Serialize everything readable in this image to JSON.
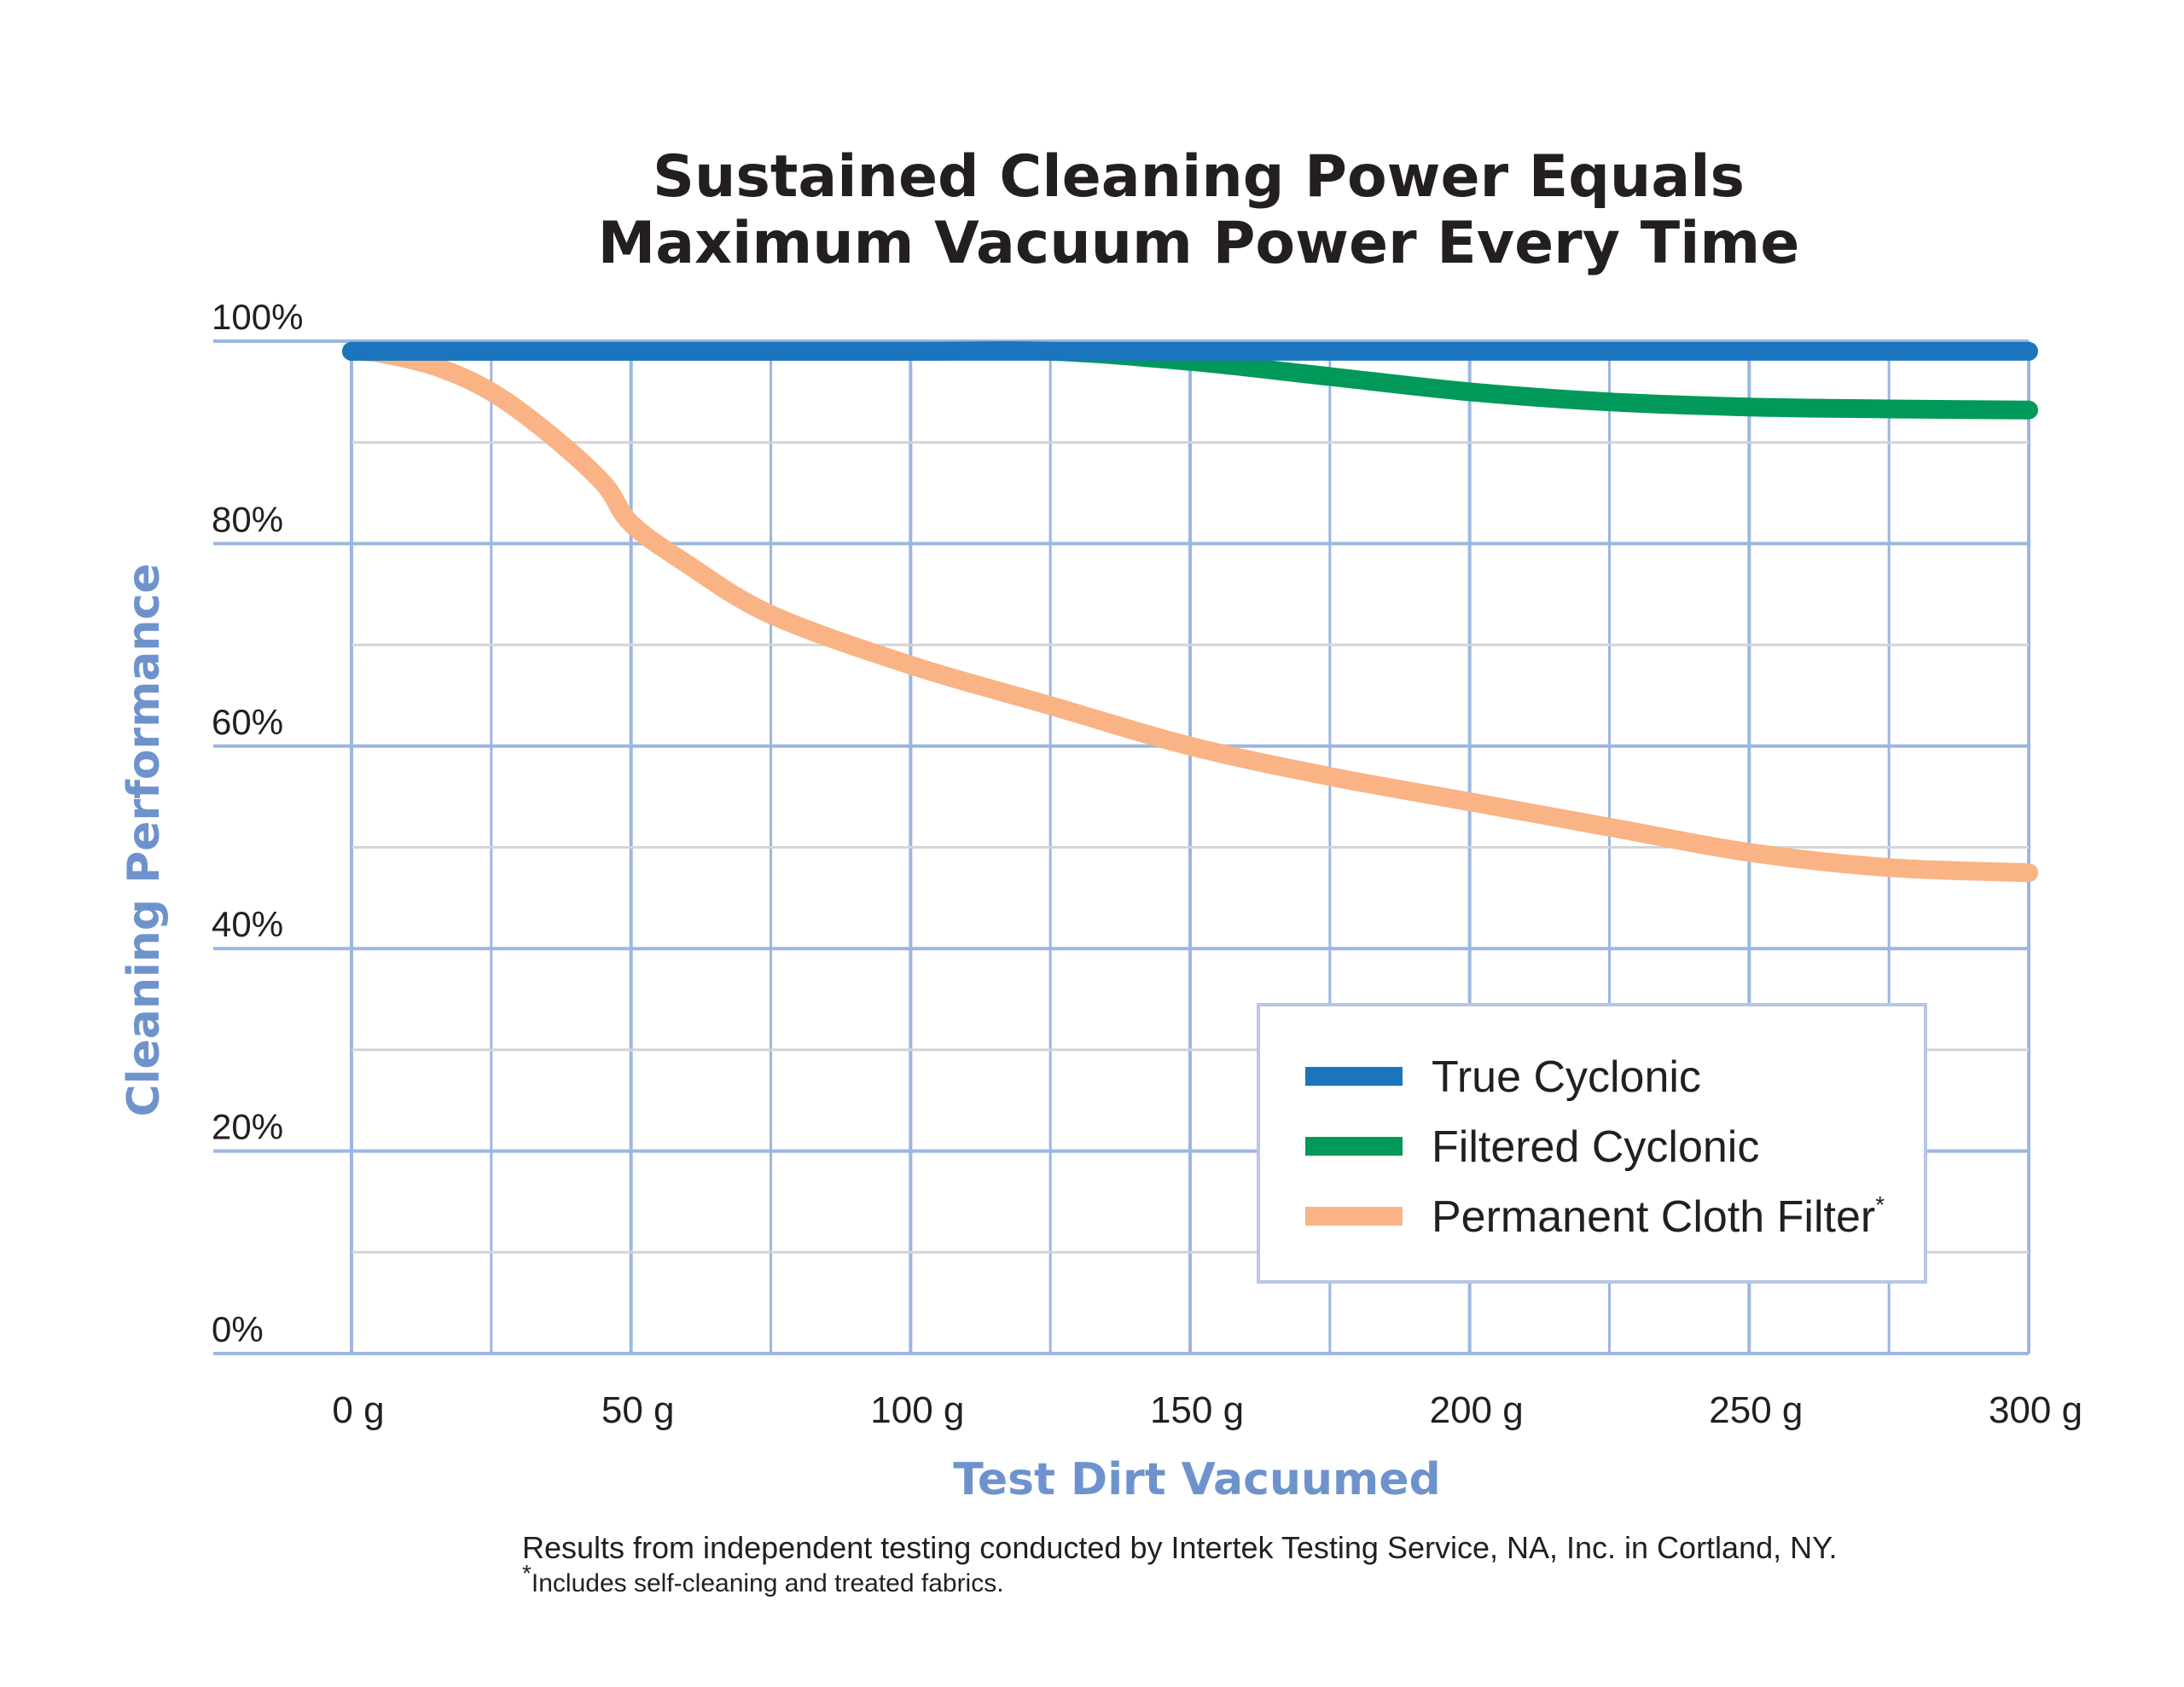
{
  "chart_data": {
    "type": "line",
    "title_line1": "Sustained Cleaning Power Equals",
    "title_line2": "Maximum Vacuum Power Every Time",
    "xlabel": "Test Dirt Vacuumed",
    "ylabel": "Cleaning Performance",
    "x_ticks": [
      "0 g",
      "50 g",
      "100 g",
      "150 g",
      "200 g",
      "250 g",
      "300 g"
    ],
    "y_ticks": [
      "0%",
      "20%",
      "40%",
      "60%",
      "80%",
      "100%"
    ],
    "xlim": [
      0,
      300
    ],
    "ylim": [
      0,
      100
    ],
    "grid": true,
    "legend_position": "bottom-right",
    "series": [
      {
        "name": "True Cyclonic",
        "color": "#1a75bc",
        "x": [
          0,
          50,
          100,
          150,
          200,
          250,
          300
        ],
        "y": [
          99,
          99,
          99,
          99,
          99,
          99,
          99
        ]
      },
      {
        "name": "Filtered Cyclonic",
        "color": "#00995a",
        "x": [
          0,
          50,
          100,
          125,
          150,
          175,
          200,
          225,
          250,
          275,
          300
        ],
        "y": [
          99,
          99,
          99,
          99,
          98,
          96.5,
          95,
          94,
          93.5,
          93.3,
          93.2
        ]
      },
      {
        "name": "Permanent Cloth Filter",
        "name_mark": "*",
        "color": "#f9b385",
        "x": [
          0,
          5,
          15,
          25,
          35,
          45,
          50,
          60,
          75,
          100,
          125,
          150,
          175,
          200,
          225,
          250,
          275,
          300
        ],
        "y": [
          99,
          98.8,
          97.5,
          95,
          91,
          86,
          82,
          78,
          73,
          68,
          64,
          60,
          57,
          54.5,
          52,
          49.5,
          48,
          47.5
        ]
      }
    ],
    "footnote": "Results from independent testing conducted by Intertek Testing Service, NA, Inc. in Cortland, NY.",
    "footnote2_mark": "*",
    "footnote2": "Includes self-cleaning and treated fabrics."
  }
}
